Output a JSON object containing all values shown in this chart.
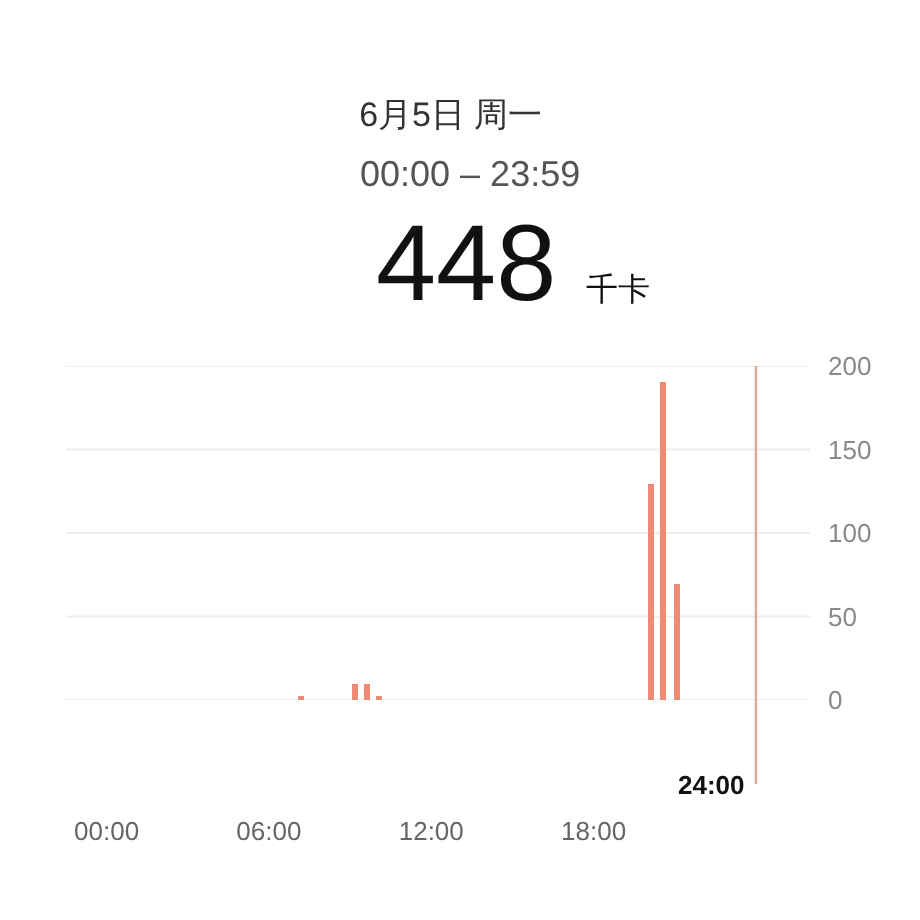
{
  "chart_data": {
    "type": "bar",
    "title": "6月5日 周一",
    "subtitle": "00:00 – 23:59",
    "annotations": [
      "448 千卡"
    ],
    "x": [
      7.15,
      9.15,
      9.6,
      10.1,
      20.1,
      20.55,
      21.1
    ],
    "values": [
      2,
      10,
      10,
      3,
      129,
      190,
      70
    ],
    "color": "#ef8a76",
    "xlim": [
      -1.5,
      26
    ],
    "xticks": [
      {
        "value": 0,
        "label": "00:00"
      },
      {
        "value": 6,
        "label": "06:00"
      },
      {
        "value": 12,
        "label": "12:00"
      },
      {
        "value": 18,
        "label": "18:00"
      }
    ],
    "ylim": [
      0,
      200
    ],
    "yticks": [
      0,
      50,
      100,
      150,
      200
    ],
    "grid": "y",
    "ref_lines": [
      {
        "axis": "x",
        "value": 24,
        "label": "24:00",
        "color": "#e9a595"
      }
    ]
  }
}
